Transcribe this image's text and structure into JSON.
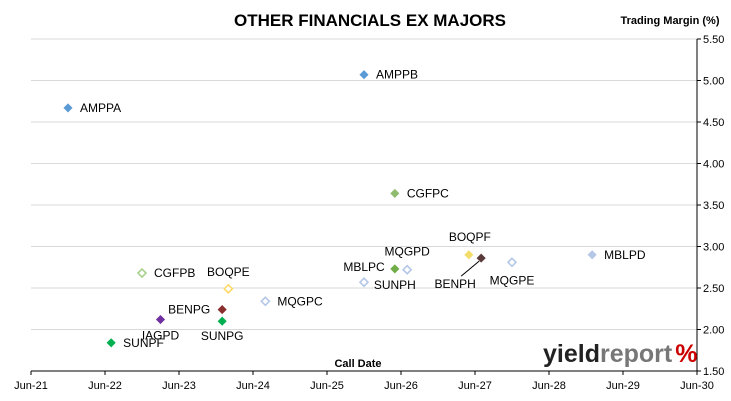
{
  "chart_data": {
    "type": "scatter",
    "title": "OTHER FINANCIALS EX MAJORS",
    "ylabel": "Trading Margin (%)",
    "xlabel": "Call Date",
    "x_ticks": [
      "Jun-21",
      "Jun-22",
      "Jun-23",
      "Jun-24",
      "Jun-25",
      "Jun-26",
      "Jun-27",
      "Jun-28",
      "Jun-29",
      "Jun-30"
    ],
    "y_ticks": [
      "1.50",
      "2.00",
      "2.50",
      "3.00",
      "3.50",
      "4.00",
      "4.50",
      "5.00",
      "5.50"
    ],
    "xlim": [
      "2021-06",
      "2030-06"
    ],
    "ylim": [
      1.5,
      5.5
    ],
    "y_axis_side": "right",
    "grid": "horizontal",
    "points": [
      {
        "label": "AMPPA",
        "x": "2021-12",
        "y": 4.67,
        "color": "#5b9bd5",
        "filled": true
      },
      {
        "label": "AMPPB",
        "x": "2025-12",
        "y": 5.07,
        "color": "#5b9bd5",
        "filled": true
      },
      {
        "label": "CGFPC",
        "x": "2026-05",
        "y": 3.64,
        "color": "#8fbc6e",
        "filled": true
      },
      {
        "label": "CGFPB",
        "x": "2022-12",
        "y": 2.68,
        "color": "#a9d18e",
        "filled": false
      },
      {
        "label": "BOQPE",
        "x": "2024-02",
        "y": 2.49,
        "color": "#ffd966",
        "filled": false
      },
      {
        "label": "MQGPC",
        "x": "2024-08",
        "y": 2.34,
        "color": "#b4c7e7",
        "filled": false
      },
      {
        "label": "MBLPC",
        "x": "2025-12",
        "y": 2.57,
        "color": "#b4c7e7",
        "filled": false
      },
      {
        "label": "MQGPD",
        "x": "2026-07",
        "y": 2.72,
        "color": "#b4c7e7",
        "filled": false
      },
      {
        "label": "SUNPH",
        "x": "2026-05",
        "y": 2.73,
        "color": "#70ad47",
        "filled": true
      },
      {
        "label": "BOQPF",
        "x": "2027-05",
        "y": 2.9,
        "color": "#f4dc6b",
        "filled": true
      },
      {
        "label": "BENPH",
        "x": "2027-07",
        "y": 2.86,
        "color": "#5a3a3a",
        "filled": true
      },
      {
        "label": "MQGPE",
        "x": "2027-12",
        "y": 2.81,
        "color": "#b4c7e7",
        "filled": false
      },
      {
        "label": "MBLPD",
        "x": "2029-01",
        "y": 2.9,
        "color": "#b4c7e7",
        "filled": true
      },
      {
        "label": "BENPG",
        "x": "2024-01",
        "y": 2.24,
        "color": "#8b2e2e",
        "filled": true
      },
      {
        "label": "IAGPD",
        "x": "2023-03",
        "y": 2.12,
        "color": "#7030a0",
        "filled": true
      },
      {
        "label": "SUNPG",
        "x": "2024-01",
        "y": 2.1,
        "color": "#00b050",
        "filled": true
      },
      {
        "label": "SUNPF",
        "x": "2022-07",
        "y": 1.84,
        "color": "#00b050",
        "filled": true
      }
    ]
  },
  "logo": {
    "part1": "yield",
    "part2": "report",
    "part3": "%"
  }
}
